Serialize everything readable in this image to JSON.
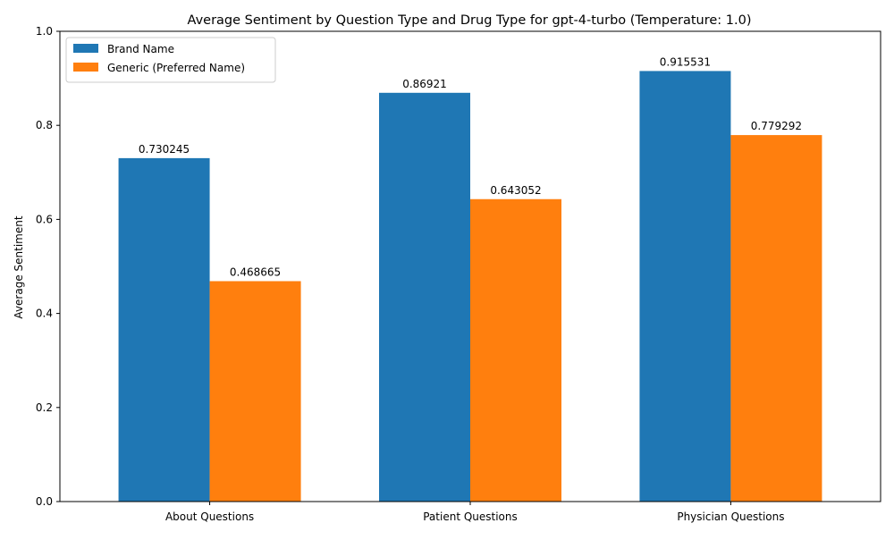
{
  "chart_data": {
    "type": "bar",
    "title": "Average Sentiment by Question Type and Drug Type for gpt-4-turbo (Temperature: 1.0)",
    "xlabel": "",
    "ylabel": "Average Sentiment",
    "categories": [
      "About Questions",
      "Patient Questions",
      "Physician Questions"
    ],
    "series": [
      {
        "name": "Brand Name",
        "color": "#1f77b4",
        "values": [
          0.730245,
          0.86921,
          0.915531
        ],
        "labels": [
          "0.730245",
          "0.86921",
          "0.915531"
        ]
      },
      {
        "name": "Generic (Preferred Name)",
        "color": "#ff7f0e",
        "values": [
          0.468665,
          0.643052,
          0.779292
        ],
        "labels": [
          "0.468665",
          "0.643052",
          "0.779292"
        ]
      }
    ],
    "ylim": [
      0,
      1.0
    ],
    "yticks": [
      "0.0",
      "0.2",
      "0.4",
      "0.6",
      "0.8",
      "1.0"
    ],
    "grid": false,
    "legend_position": "top-left"
  }
}
